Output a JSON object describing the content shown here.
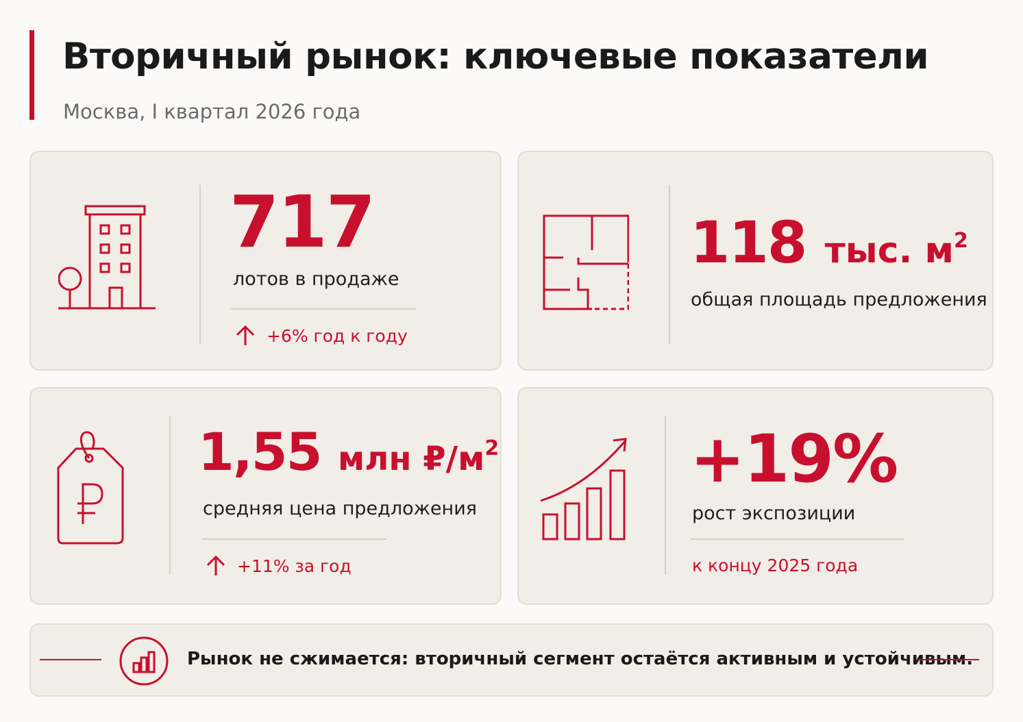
{
  "header": {
    "title": "Вторичный рынок: ключевые показатели",
    "subtitle": "Москва, I квартал 2026 года"
  },
  "cards": {
    "lots": {
      "icon": "building-icon",
      "value": "717",
      "label": "лотов в продаже",
      "note": "+6% год к году"
    },
    "area": {
      "icon": "floor-plan-icon",
      "value": "118",
      "unit": "тыс. м",
      "unit_sup": "2",
      "label": "общая площадь предложения"
    },
    "price": {
      "icon": "ruble-tag-icon",
      "value": "1,55",
      "unit": "млн ₽/м",
      "unit_sup": "2",
      "label": "средняя цена предложения",
      "note": "+11% за год"
    },
    "exposure": {
      "icon": "growth-chart-icon",
      "value": "+19%",
      "label": "рост экспозиции",
      "note": "к концу 2025 года"
    }
  },
  "footer": {
    "icon": "bar-chart-circle-icon",
    "text": "Рынок не сжимается: вторичный сегмент остаётся активным и устойчивым."
  },
  "colors": {
    "accent": "#c8102e",
    "card_bg": "#f1ede7",
    "page_bg": "#fbfaf8"
  }
}
